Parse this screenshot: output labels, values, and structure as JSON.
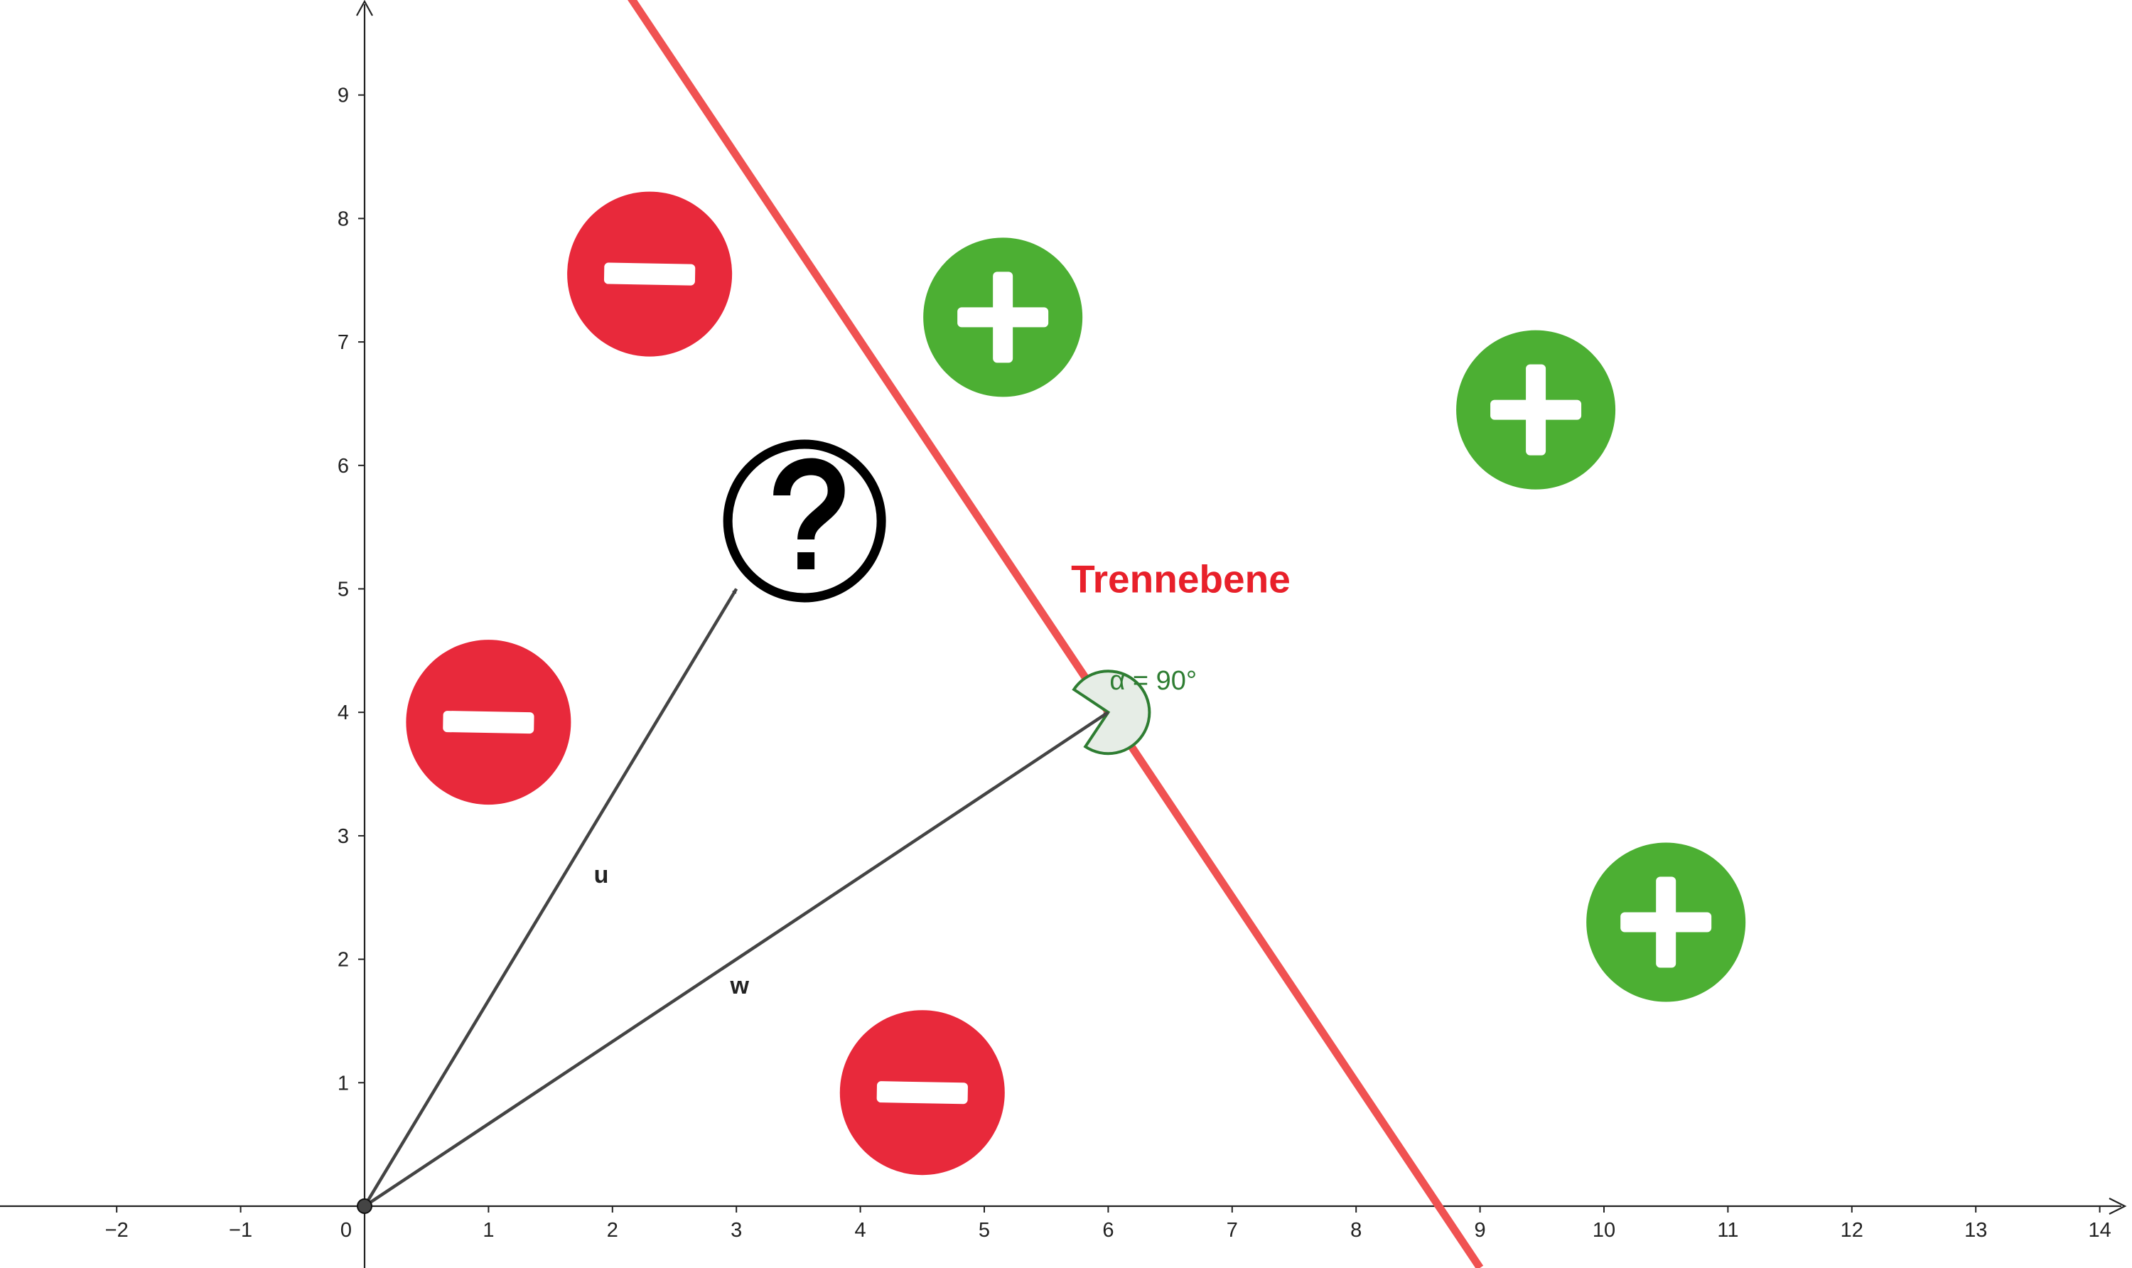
{
  "axes": {
    "x_range": [
      -2,
      14
    ],
    "y_range": [
      0,
      9
    ],
    "x_ticks": [
      -2,
      -1,
      0,
      1,
      2,
      3,
      4,
      5,
      6,
      7,
      8,
      9,
      10,
      11,
      12,
      13,
      14
    ],
    "y_ticks": [
      1,
      2,
      3,
      4,
      5,
      6,
      7,
      8,
      9
    ],
    "axis_color": "#222222"
  },
  "separating_line": {
    "label": "Trennebene",
    "color": "#f05252",
    "label_color": "#e8202a",
    "point_a": [
      2.12,
      9.83
    ],
    "point_b": [
      9.0,
      -0.5
    ]
  },
  "vectors": [
    {
      "label": "u",
      "from": [
        0,
        0
      ],
      "to": [
        3.0,
        5.0
      ],
      "color": "#444444"
    },
    {
      "label": "w",
      "from": [
        0,
        0
      ],
      "to": [
        6.0,
        4.0
      ],
      "color": "#444444"
    }
  ],
  "angle": {
    "label": "α = 90°",
    "color": "#2e7d32",
    "fill": "#e6ede6"
  },
  "origin_point": {
    "color": "#444444"
  },
  "points": [
    {
      "class": "minus",
      "icon": "minus-icon",
      "x": 2.3,
      "y": 7.55,
      "color": "#e8293b"
    },
    {
      "class": "minus",
      "icon": "minus-icon",
      "x": 1.0,
      "y": 3.92,
      "color": "#e8293b"
    },
    {
      "class": "minus",
      "icon": "minus-icon",
      "x": 4.5,
      "y": 0.92,
      "color": "#e8293b"
    },
    {
      "class": "plus",
      "icon": "plus-icon",
      "x": 5.15,
      "y": 7.2,
      "color": "#4caf33"
    },
    {
      "class": "plus",
      "icon": "plus-icon",
      "x": 9.45,
      "y": 6.45,
      "color": "#4caf33"
    },
    {
      "class": "plus",
      "icon": "plus-icon",
      "x": 10.5,
      "y": 2.3,
      "color": "#4caf33"
    },
    {
      "class": "unknown",
      "icon": "question-icon",
      "x": 3.55,
      "y": 5.55,
      "color": "#000000"
    }
  ]
}
